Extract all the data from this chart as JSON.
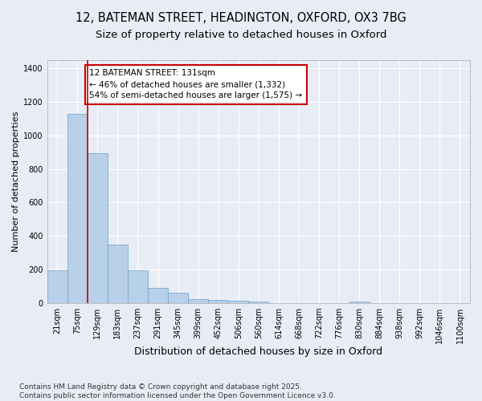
{
  "title_line1": "12, BATEMAN STREET, HEADINGTON, OXFORD, OX3 7BG",
  "title_line2": "Size of property relative to detached houses in Oxford",
  "xlabel": "Distribution of detached houses by size in Oxford",
  "ylabel": "Number of detached properties",
  "categories": [
    "21sqm",
    "75sqm",
    "129sqm",
    "183sqm",
    "237sqm",
    "291sqm",
    "345sqm",
    "399sqm",
    "452sqm",
    "506sqm",
    "560sqm",
    "614sqm",
    "668sqm",
    "722sqm",
    "776sqm",
    "830sqm",
    "884sqm",
    "938sqm",
    "992sqm",
    "1046sqm",
    "1100sqm"
  ],
  "values": [
    195,
    1130,
    895,
    350,
    195,
    90,
    60,
    25,
    20,
    15,
    10,
    0,
    0,
    0,
    0,
    8,
    0,
    0,
    0,
    0,
    0
  ],
  "bar_color": "#b8d0e8",
  "bar_edge_color": "#6a9fc8",
  "background_color": "#e8edf5",
  "grid_color": "#ffffff",
  "vline_x": 1.5,
  "vline_color": "#cc0000",
  "annotation_text": "12 BATEMAN STREET: 131sqm\n← 46% of detached houses are smaller (1,332)\n54% of semi-detached houses are larger (1,575) →",
  "annotation_box_color": "#cc0000",
  "footnote": "Contains HM Land Registry data © Crown copyright and database right 2025.\nContains public sector information licensed under the Open Government Licence v3.0.",
  "ylim": [
    0,
    1450
  ],
  "yticks": [
    0,
    200,
    400,
    600,
    800,
    1000,
    1200,
    1400
  ],
  "title_fontsize": 10.5,
  "subtitle_fontsize": 9.5,
  "ylabel_fontsize": 8,
  "xlabel_fontsize": 9,
  "footnote_fontsize": 6.5,
  "tick_fontsize": 7
}
